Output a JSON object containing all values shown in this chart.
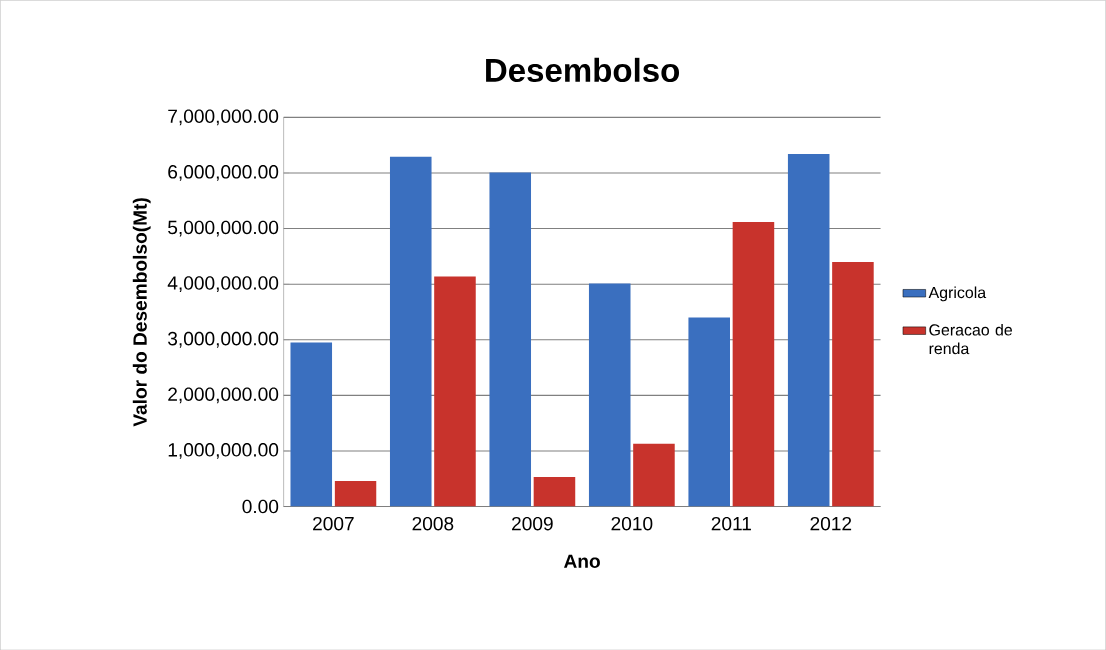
{
  "chart_data": {
    "type": "bar",
    "title": "Desembolso",
    "xlabel": "Ano",
    "ylabel": "Valor do Desembolso(Mt)",
    "categories": [
      "2007",
      "2008",
      "2009",
      "2010",
      "2011",
      "2012"
    ],
    "series": [
      {
        "name": "Agricola",
        "color": "#3a6fbf",
        "values": [
          2950000,
          6290000,
          6010000,
          4010000,
          3400000,
          6340000
        ]
      },
      {
        "name": "Geracao de renda",
        "color": "#c8332c",
        "values": [
          460000,
          4140000,
          530000,
          1130000,
          5120000,
          4400000
        ]
      }
    ],
    "ylim": [
      0,
      7000000
    ],
    "yticks": [
      {
        "value": 0,
        "label": "0.00"
      },
      {
        "value": 1000000,
        "label": "1,000,000.00"
      },
      {
        "value": 2000000,
        "label": "2,000,000.00"
      },
      {
        "value": 3000000,
        "label": "3,000,000.00"
      },
      {
        "value": 4000000,
        "label": "4,000,000.00"
      },
      {
        "value": 5000000,
        "label": "5,000,000.00"
      },
      {
        "value": 6000000,
        "label": "6,000,000.00"
      },
      {
        "value": 7000000,
        "label": "7,000,000.00"
      }
    ],
    "grid": "y",
    "legend": "right"
  }
}
